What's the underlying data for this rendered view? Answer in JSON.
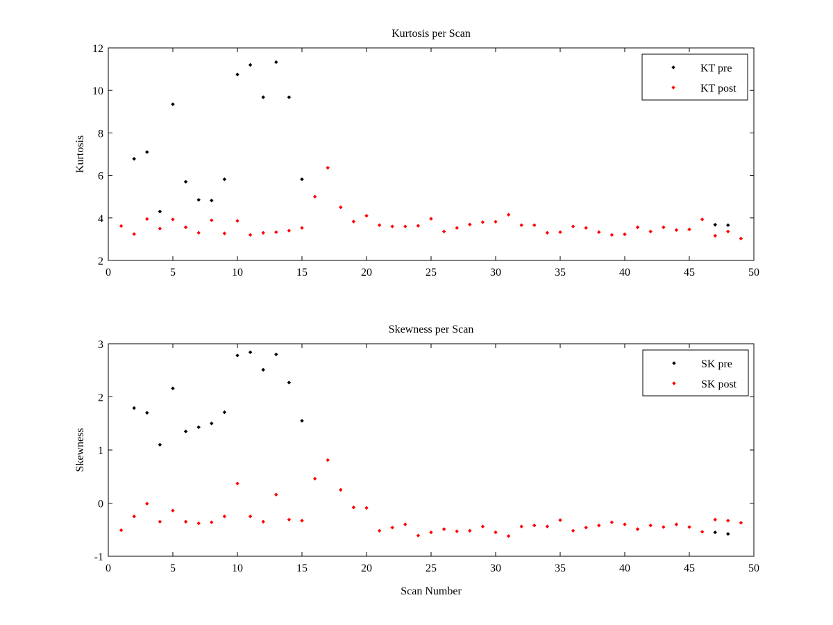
{
  "chart_data": [
    {
      "type": "scatter",
      "title": "Kurtosis per Scan",
      "xlabel": "",
      "ylabel": "Kurtosis",
      "xlim": [
        0,
        50
      ],
      "ylim": [
        2,
        12
      ],
      "xticks": [
        0,
        5,
        10,
        15,
        20,
        25,
        30,
        35,
        40,
        45,
        50
      ],
      "yticks": [
        2,
        4,
        6,
        8,
        10,
        12
      ],
      "grid": false,
      "legend_position": "top-right",
      "series": [
        {
          "name": "KT pre",
          "color": "#000000",
          "x": [
            2,
            3,
            4,
            5,
            6,
            7,
            8,
            9,
            10,
            11,
            12,
            13,
            14,
            15,
            47,
            48
          ],
          "y": [
            6.78,
            7.1,
            4.3,
            9.35,
            5.7,
            4.85,
            4.82,
            5.82,
            10.75,
            11.2,
            9.68,
            11.33,
            9.68,
            5.82,
            3.68,
            3.66
          ]
        },
        {
          "name": "KT post",
          "color": "#ff0000",
          "x": [
            1,
            2,
            3,
            4,
            5,
            6,
            7,
            8,
            9,
            10,
            11,
            12,
            13,
            14,
            15,
            16,
            17,
            18,
            19,
            20,
            21,
            22,
            23,
            24,
            25,
            26,
            27,
            28,
            29,
            30,
            31,
            32,
            33,
            34,
            35,
            36,
            37,
            38,
            39,
            40,
            41,
            42,
            43,
            44,
            45,
            46,
            47,
            48,
            49
          ],
          "y": [
            3.62,
            3.24,
            3.95,
            3.5,
            3.93,
            3.56,
            3.3,
            3.89,
            3.27,
            3.86,
            3.2,
            3.3,
            3.33,
            3.4,
            3.53,
            5.0,
            6.36,
            4.5,
            3.83,
            4.1,
            3.66,
            3.6,
            3.6,
            3.63,
            3.96,
            3.36,
            3.53,
            3.69,
            3.8,
            3.82,
            4.15,
            3.66,
            3.66,
            3.3,
            3.33,
            3.6,
            3.53,
            3.33,
            3.2,
            3.23,
            3.56,
            3.36,
            3.56,
            3.43,
            3.46,
            3.93,
            3.16,
            3.36,
            3.03
          ]
        }
      ]
    },
    {
      "type": "scatter",
      "title": "Skewness per Scan",
      "xlabel": "Scan Number",
      "ylabel": "Skewness",
      "xlim": [
        0,
        50
      ],
      "ylim": [
        -1,
        3
      ],
      "xticks": [
        0,
        5,
        10,
        15,
        20,
        25,
        30,
        35,
        40,
        45,
        50
      ],
      "yticks": [
        -1,
        0,
        1,
        2,
        3
      ],
      "grid": false,
      "legend_position": "top-right",
      "series": [
        {
          "name": "SK pre",
          "color": "#000000",
          "x": [
            2,
            3,
            4,
            5,
            6,
            7,
            8,
            9,
            10,
            11,
            12,
            13,
            14,
            15,
            47,
            48
          ],
          "y": [
            1.79,
            1.7,
            1.1,
            2.16,
            1.35,
            1.43,
            1.5,
            1.71,
            2.78,
            2.84,
            2.51,
            2.8,
            2.27,
            1.55,
            -0.55,
            -0.58
          ]
        },
        {
          "name": "SK post",
          "color": "#ff0000",
          "x": [
            1,
            2,
            3,
            4,
            5,
            6,
            7,
            8,
            9,
            10,
            11,
            12,
            13,
            14,
            15,
            16,
            17,
            18,
            19,
            20,
            21,
            22,
            23,
            24,
            25,
            26,
            27,
            28,
            29,
            30,
            31,
            32,
            33,
            34,
            35,
            36,
            37,
            38,
            39,
            40,
            41,
            42,
            43,
            44,
            45,
            46,
            47,
            48,
            49
          ],
          "y": [
            -0.51,
            -0.25,
            -0.01,
            -0.35,
            -0.14,
            -0.35,
            -0.38,
            -0.36,
            -0.25,
            0.37,
            -0.25,
            -0.35,
            0.16,
            -0.31,
            -0.33,
            0.46,
            0.81,
            0.25,
            -0.08,
            -0.09,
            -0.52,
            -0.46,
            -0.4,
            -0.61,
            -0.55,
            -0.49,
            -0.53,
            -0.52,
            -0.44,
            -0.55,
            -0.62,
            -0.44,
            -0.42,
            -0.44,
            -0.32,
            -0.52,
            -0.46,
            -0.42,
            -0.36,
            -0.4,
            -0.49,
            -0.42,
            -0.45,
            -0.4,
            -0.45,
            -0.54,
            -0.31,
            -0.33,
            -0.37
          ]
        }
      ]
    }
  ]
}
